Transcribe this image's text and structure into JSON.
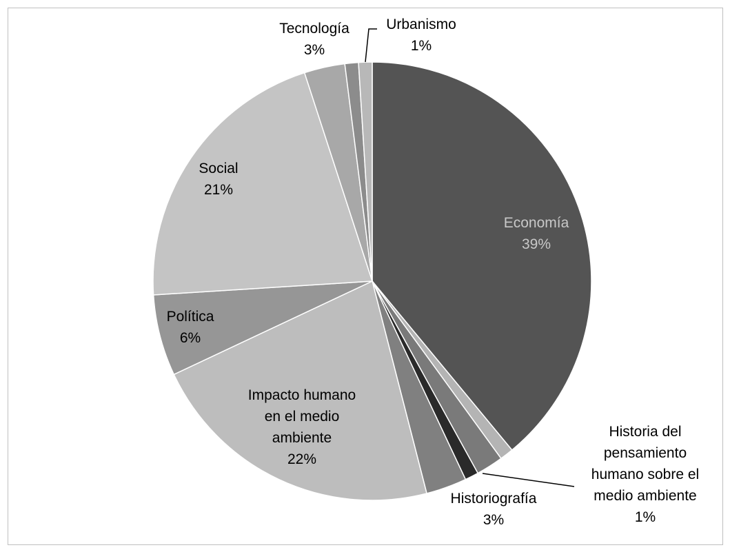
{
  "chart_data": {
    "type": "pie",
    "title": "",
    "slices": [
      {
        "label": "Economía",
        "value": 39,
        "pct_text": "39%",
        "color": "#545454",
        "label_color": "#c8c8c8"
      },
      {
        "label": "",
        "value": 1,
        "pct_text": "",
        "color": "#b4b4b4",
        "label_color": "#000000"
      },
      {
        "label": "",
        "value": 2,
        "pct_text": "",
        "color": "#7a7a7a",
        "label_color": "#000000"
      },
      {
        "label": "Historia del pensamiento humano sobre el medio ambiente",
        "value": 1,
        "pct_text": "1%",
        "color": "#2a2a2a",
        "label_color": "#000000"
      },
      {
        "label": "Historiografía",
        "value": 3,
        "pct_text": "3%",
        "color": "#808080",
        "label_color": "#000000"
      },
      {
        "label": "Impacto humano en el medio ambiente",
        "value": 22,
        "pct_text": "22%",
        "color": "#bdbdbd",
        "label_color": "#000000"
      },
      {
        "label": "Política",
        "value": 6,
        "pct_text": "6%",
        "color": "#969696",
        "label_color": "#000000"
      },
      {
        "label": "Social",
        "value": 21,
        "pct_text": "21%",
        "color": "#c4c4c4",
        "label_color": "#000000"
      },
      {
        "label": "Tecnología",
        "value": 3,
        "pct_text": "3%",
        "color": "#a8a8a8",
        "label_color": "#000000"
      },
      {
        "label": "",
        "value": 1,
        "pct_text": "",
        "color": "#8c8c8c",
        "label_color": "#000000"
      },
      {
        "label": "Urbanismo",
        "value": 1,
        "pct_text": "1%",
        "color": "#b8b8b8",
        "label_color": "#000000"
      }
    ],
    "legend": "none",
    "start_angle_deg": 0,
    "direction": "clockwise"
  }
}
